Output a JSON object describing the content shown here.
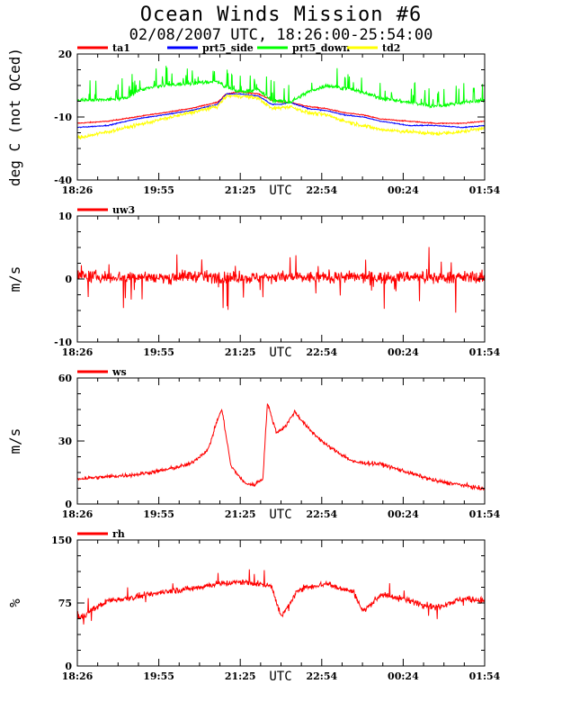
{
  "title": "Ocean Winds Mission #6",
  "subtitle": "02/08/2007  UTC, 18:26:00-25:54:00",
  "chart_data": [
    {
      "type": "line",
      "ylabel": "deg C (not QCed)",
      "xlabel": "UTC",
      "x_ticks": [
        "18:26",
        "19:55",
        "21:25",
        "22:54",
        "00:24",
        "01:54"
      ],
      "y_ticks": [
        "20",
        "-10",
        "-40"
      ],
      "ylim": [
        -40,
        20
      ],
      "grid": false,
      "legend_position": "top",
      "series": [
        {
          "name": "ta1",
          "color": "#ff0000",
          "x": [
            "18:26",
            "19:00",
            "19:30",
            "20:00",
            "20:30",
            "21:00",
            "21:10",
            "21:25",
            "21:45",
            "22:00",
            "22:10",
            "22:20",
            "22:40",
            "23:00",
            "23:20",
            "23:40",
            "00:00",
            "00:30",
            "01:00",
            "01:30",
            "01:54"
          ],
          "values": [
            -13,
            -12,
            -10,
            -8,
            -6,
            -3,
            1,
            2,
            1,
            -2,
            -3,
            -3,
            -5,
            -6,
            -8,
            -9,
            -11,
            -12,
            -13,
            -13,
            -12
          ]
        },
        {
          "name": "prt5_side",
          "color": "#0000ff",
          "x": [
            "18:26",
            "19:00",
            "19:30",
            "20:00",
            "20:30",
            "21:00",
            "21:10",
            "21:25",
            "21:45",
            "22:00",
            "22:10",
            "22:20",
            "22:40",
            "23:00",
            "23:20",
            "23:40",
            "00:00",
            "00:30",
            "01:00",
            "01:30",
            "01:54"
          ],
          "values": [
            -15,
            -14,
            -11,
            -9,
            -7,
            -4,
            1,
            1,
            0,
            -4,
            -4,
            -3,
            -6,
            -7,
            -9,
            -10,
            -12,
            -14,
            -14,
            -15,
            -14
          ]
        },
        {
          "name": "prt5_down",
          "color": "#00ff00",
          "x": [
            "18:26",
            "18:50",
            "19:20",
            "19:35",
            "20:00",
            "20:30",
            "21:00",
            "21:10",
            "21:25",
            "21:45",
            "22:00",
            "22:20",
            "22:40",
            "23:00",
            "23:30",
            "00:00",
            "00:30",
            "01:00",
            "01:30",
            "01:54"
          ],
          "values": [
            -2,
            -2,
            -1,
            3,
            5,
            6,
            7,
            4,
            2,
            3,
            -2,
            -3,
            2,
            5,
            3,
            -1,
            -3,
            -5,
            -3,
            -2
          ]
        },
        {
          "name": "td2",
          "color": "#ffff00",
          "x": [
            "18:26",
            "19:00",
            "19:30",
            "20:00",
            "20:30",
            "21:00",
            "21:10",
            "21:25",
            "21:45",
            "22:00",
            "22:20",
            "22:40",
            "23:00",
            "23:20",
            "23:40",
            "00:00",
            "00:30",
            "01:00",
            "01:30",
            "01:54"
          ],
          "values": [
            -20,
            -17,
            -14,
            -11,
            -8,
            -5,
            0,
            0,
            -1,
            -6,
            -5,
            -8,
            -9,
            -12,
            -14,
            -16,
            -17,
            -18,
            -17,
            -15
          ]
        }
      ]
    },
    {
      "type": "line",
      "ylabel": "m/s",
      "xlabel": "UTC",
      "x_ticks": [
        "18:26",
        "19:55",
        "21:25",
        "22:54",
        "00:24",
        "01:54"
      ],
      "y_ticks": [
        "10",
        "0",
        "-10"
      ],
      "ylim": [
        -10,
        10
      ],
      "grid": false,
      "legend_position": "top-left",
      "series": [
        {
          "name": "uw3",
          "color": "#ff0000",
          "x": [
            "18:26",
            "19:00",
            "19:30",
            "20:00",
            "20:30",
            "21:00",
            "21:30",
            "22:00",
            "22:30",
            "23:00",
            "23:30",
            "00:00",
            "00:30",
            "01:00",
            "01:30",
            "01:54"
          ],
          "values": [
            0.5,
            0.3,
            0.4,
            0.2,
            0.5,
            0.3,
            0.1,
            0.4,
            0.2,
            0.3,
            0.3,
            0.2,
            0.4,
            0.2,
            0.3,
            0.2
          ]
        }
      ]
    },
    {
      "type": "line",
      "ylabel": "m/s",
      "xlabel": "UTC",
      "x_ticks": [
        "18:26",
        "19:55",
        "21:25",
        "22:54",
        "00:24",
        "01:54"
      ],
      "y_ticks": [
        "60",
        "30",
        "0"
      ],
      "ylim": [
        0,
        60
      ],
      "grid": false,
      "legend_position": "top-left",
      "series": [
        {
          "name": "ws",
          "color": "#ff0000",
          "x": [
            "18:26",
            "19:00",
            "19:30",
            "20:00",
            "20:30",
            "20:50",
            "21:00",
            "21:05",
            "21:15",
            "21:30",
            "21:40",
            "21:50",
            "21:55",
            "22:05",
            "22:15",
            "22:25",
            "22:40",
            "23:00",
            "23:30",
            "00:00",
            "00:30",
            "01:00",
            "01:30",
            "01:54"
          ],
          "values": [
            12,
            13,
            14,
            16,
            19,
            26,
            40,
            45,
            18,
            10,
            9,
            12,
            48,
            34,
            37,
            44,
            36,
            28,
            20,
            19,
            15,
            11,
            9,
            7
          ]
        }
      ]
    },
    {
      "type": "line",
      "ylabel": "%",
      "xlabel": "UTC",
      "x_ticks": [
        "18:26",
        "19:55",
        "21:25",
        "22:54",
        "00:24",
        "01:54"
      ],
      "y_ticks": [
        "150",
        "75",
        "0"
      ],
      "ylim": [
        0,
        150
      ],
      "grid": false,
      "legend_position": "top-left",
      "series": [
        {
          "name": "rh",
          "color": "#ff0000",
          "x": [
            "18:26",
            "18:40",
            "19:00",
            "19:30",
            "20:00",
            "20:30",
            "21:00",
            "21:30",
            "22:00",
            "22:10",
            "22:30",
            "23:00",
            "23:30",
            "23:40",
            "00:00",
            "00:30",
            "01:00",
            "01:30",
            "01:54"
          ],
          "values": [
            55,
            65,
            78,
            82,
            88,
            92,
            98,
            100,
            95,
            58,
            92,
            98,
            88,
            65,
            85,
            78,
            70,
            80,
            78
          ]
        }
      ]
    }
  ]
}
